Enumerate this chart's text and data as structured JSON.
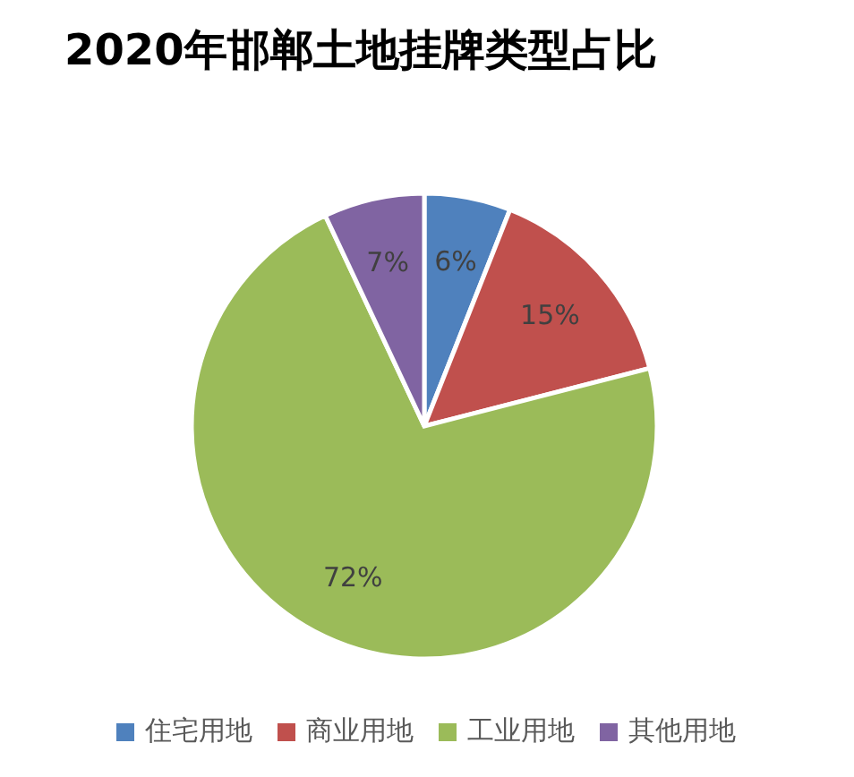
{
  "chart_data": {
    "type": "pie",
    "title": "2020年邯郸土地挂牌类型占比",
    "categories": [
      "住宅用地",
      "商业用地",
      "工业用地",
      "其他用地"
    ],
    "values": [
      6,
      15,
      72,
      7
    ],
    "colors": [
      "#4f81bd",
      "#c0504d",
      "#9bbb59",
      "#8064a2"
    ],
    "value_labels": [
      "6%",
      "15%",
      "72%",
      "7%"
    ],
    "legend": "bottom"
  }
}
